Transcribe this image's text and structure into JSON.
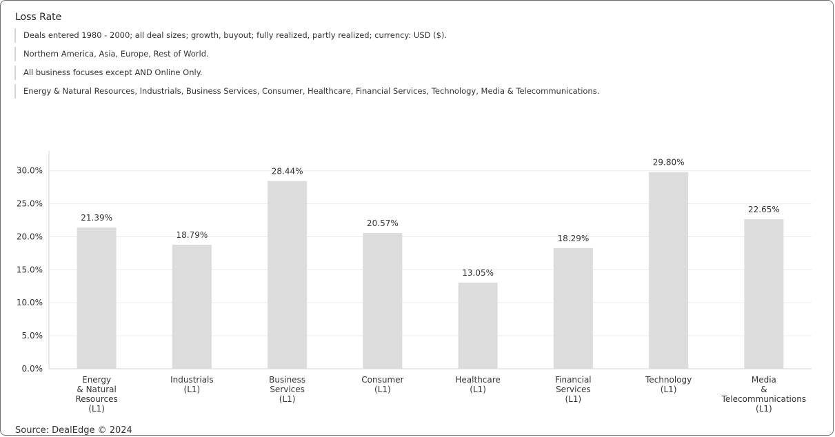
{
  "header": {
    "title": "Loss Rate",
    "filters": [
      "Deals entered 1980 - 2000; all deal sizes; growth, buyout; fully realized, partly realized; currency: USD ($).",
      "Northern America, Asia, Europe, Rest of World.",
      "All business focuses except AND Online Only.",
      "Energy & Natural Resources, Industrials, Business Services, Consumer, Healthcare, Financial Services, Technology, Media & Telecommunications."
    ]
  },
  "footer": {
    "source": "Source: DealEdge © 2024"
  },
  "colors": {
    "bar": "#dcdcdc",
    "grid": "#ececec",
    "axis": "#d0d0d0"
  },
  "chart_data": {
    "type": "bar",
    "title": "Loss Rate",
    "categories": [
      [
        "Energy",
        "& Natural",
        "Resources",
        "(L1)"
      ],
      [
        "Industrials",
        "(L1)"
      ],
      [
        "Business",
        "Services",
        "(L1)"
      ],
      [
        "Consumer",
        "(L1)"
      ],
      [
        "Healthcare",
        "(L1)"
      ],
      [
        "Financial",
        "Services",
        "(L1)"
      ],
      [
        "Technology",
        "(L1)"
      ],
      [
        "Media",
        "&",
        "Telecommunications",
        "(L1)"
      ]
    ],
    "values": [
      21.39,
      18.79,
      28.44,
      20.57,
      13.05,
      18.29,
      29.8,
      22.65
    ],
    "data_labels": [
      "21.39%",
      "18.79%",
      "28.44%",
      "20.57%",
      "13.05%",
      "18.29%",
      "29.80%",
      "22.65%"
    ],
    "y_ticks": [
      0,
      5,
      10,
      15,
      20,
      25,
      30
    ],
    "y_tick_labels": [
      "0.0%",
      "5.0%",
      "10.0%",
      "15.0%",
      "20.0%",
      "25.0%",
      "30.0%"
    ],
    "ylim": [
      0,
      33
    ],
    "grid": true,
    "legend": "none"
  }
}
